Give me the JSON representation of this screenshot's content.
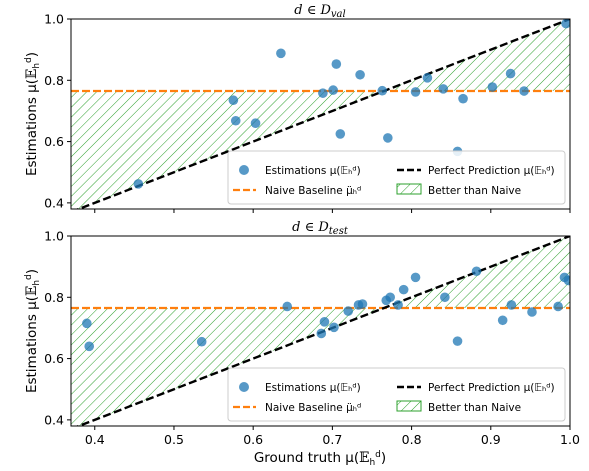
{
  "chart_data": [
    {
      "type": "scatter",
      "title": "d ∈ D_val",
      "xlim": [
        0.37,
        1.0
      ],
      "ylim": [
        0.38,
        1.0
      ],
      "yticks": [
        "0.4",
        "0.6",
        "0.8",
        "1.0"
      ],
      "ylabel": "Estimations μ(𝔼ₕᵈ)",
      "naive_baseline": 0.765,
      "grid": false,
      "legend_placement": "lower-right",
      "series": [
        {
          "name": "Estimations μ(𝔼ₕᵈ)",
          "color": "#1f77b4",
          "points": [
            [
              0.455,
              0.462
            ],
            [
              0.575,
              0.735
            ],
            [
              0.578,
              0.668
            ],
            [
              0.603,
              0.66
            ],
            [
              0.635,
              0.888
            ],
            [
              0.688,
              0.758
            ],
            [
              0.701,
              0.768
            ],
            [
              0.705,
              0.853
            ],
            [
              0.71,
              0.625
            ],
            [
              0.735,
              0.818
            ],
            [
              0.763,
              0.766
            ],
            [
              0.77,
              0.612
            ],
            [
              0.805,
              0.762
            ],
            [
              0.82,
              0.808
            ],
            [
              0.84,
              0.772
            ],
            [
              0.858,
              0.568
            ],
            [
              0.865,
              0.74
            ],
            [
              0.902,
              0.778
            ],
            [
              0.925,
              0.822
            ],
            [
              0.942,
              0.765
            ],
            [
              0.995,
              0.985
            ]
          ]
        }
      ],
      "legend": {
        "estimations": "Estimations μ(𝔼ₕᵈ)",
        "naive": "Naive Baseline μ̈ₕᵈ",
        "perfect": "Perfect Prediction μ(𝔼ₕᵈ)",
        "better": "Better than Naive"
      }
    },
    {
      "type": "scatter",
      "title": "d ∈ D_test",
      "xlim": [
        0.37,
        1.0
      ],
      "ylim": [
        0.38,
        1.0
      ],
      "xticks": [
        "0.4",
        "0.5",
        "0.6",
        "0.7",
        "0.8",
        "0.9",
        "1.0"
      ],
      "yticks": [
        "0.4",
        "0.6",
        "0.8",
        "1.0"
      ],
      "xlabel": "Ground truth μ(𝔼ₕᵈ)",
      "ylabel": "Estimations μ(𝔼ₕᵈ)",
      "naive_baseline": 0.765,
      "grid": false,
      "legend_placement": "lower-right",
      "series": [
        {
          "name": "Estimations μ(𝔼ₕᵈ)",
          "color": "#1f77b4",
          "points": [
            [
              0.39,
              0.715
            ],
            [
              0.393,
              0.64
            ],
            [
              0.535,
              0.655
            ],
            [
              0.643,
              0.77
            ],
            [
              0.686,
              0.682
            ],
            [
              0.69,
              0.72
            ],
            [
              0.702,
              0.702
            ],
            [
              0.72,
              0.755
            ],
            [
              0.733,
              0.775
            ],
            [
              0.738,
              0.778
            ],
            [
              0.768,
              0.79
            ],
            [
              0.773,
              0.8
            ],
            [
              0.783,
              0.775
            ],
            [
              0.79,
              0.825
            ],
            [
              0.805,
              0.865
            ],
            [
              0.842,
              0.8
            ],
            [
              0.858,
              0.657
            ],
            [
              0.882,
              0.885
            ],
            [
              0.915,
              0.725
            ],
            [
              0.926,
              0.775
            ],
            [
              0.952,
              0.752
            ],
            [
              0.985,
              0.77
            ],
            [
              0.993,
              0.865
            ],
            [
              0.998,
              0.855
            ]
          ]
        }
      ],
      "legend": {
        "estimations": "Estimations μ(𝔼ₕᵈ)",
        "naive": "Naive Baseline μ̈ₕᵈ",
        "perfect": "Perfect Prediction μ(𝔼ₕᵈ)",
        "better": "Better than Naive"
      }
    }
  ],
  "colors": {
    "points": "#1f77b4",
    "naive_line": "#ff7f0e",
    "perfect_line": "#000000",
    "hatch": "#2ca02c"
  }
}
